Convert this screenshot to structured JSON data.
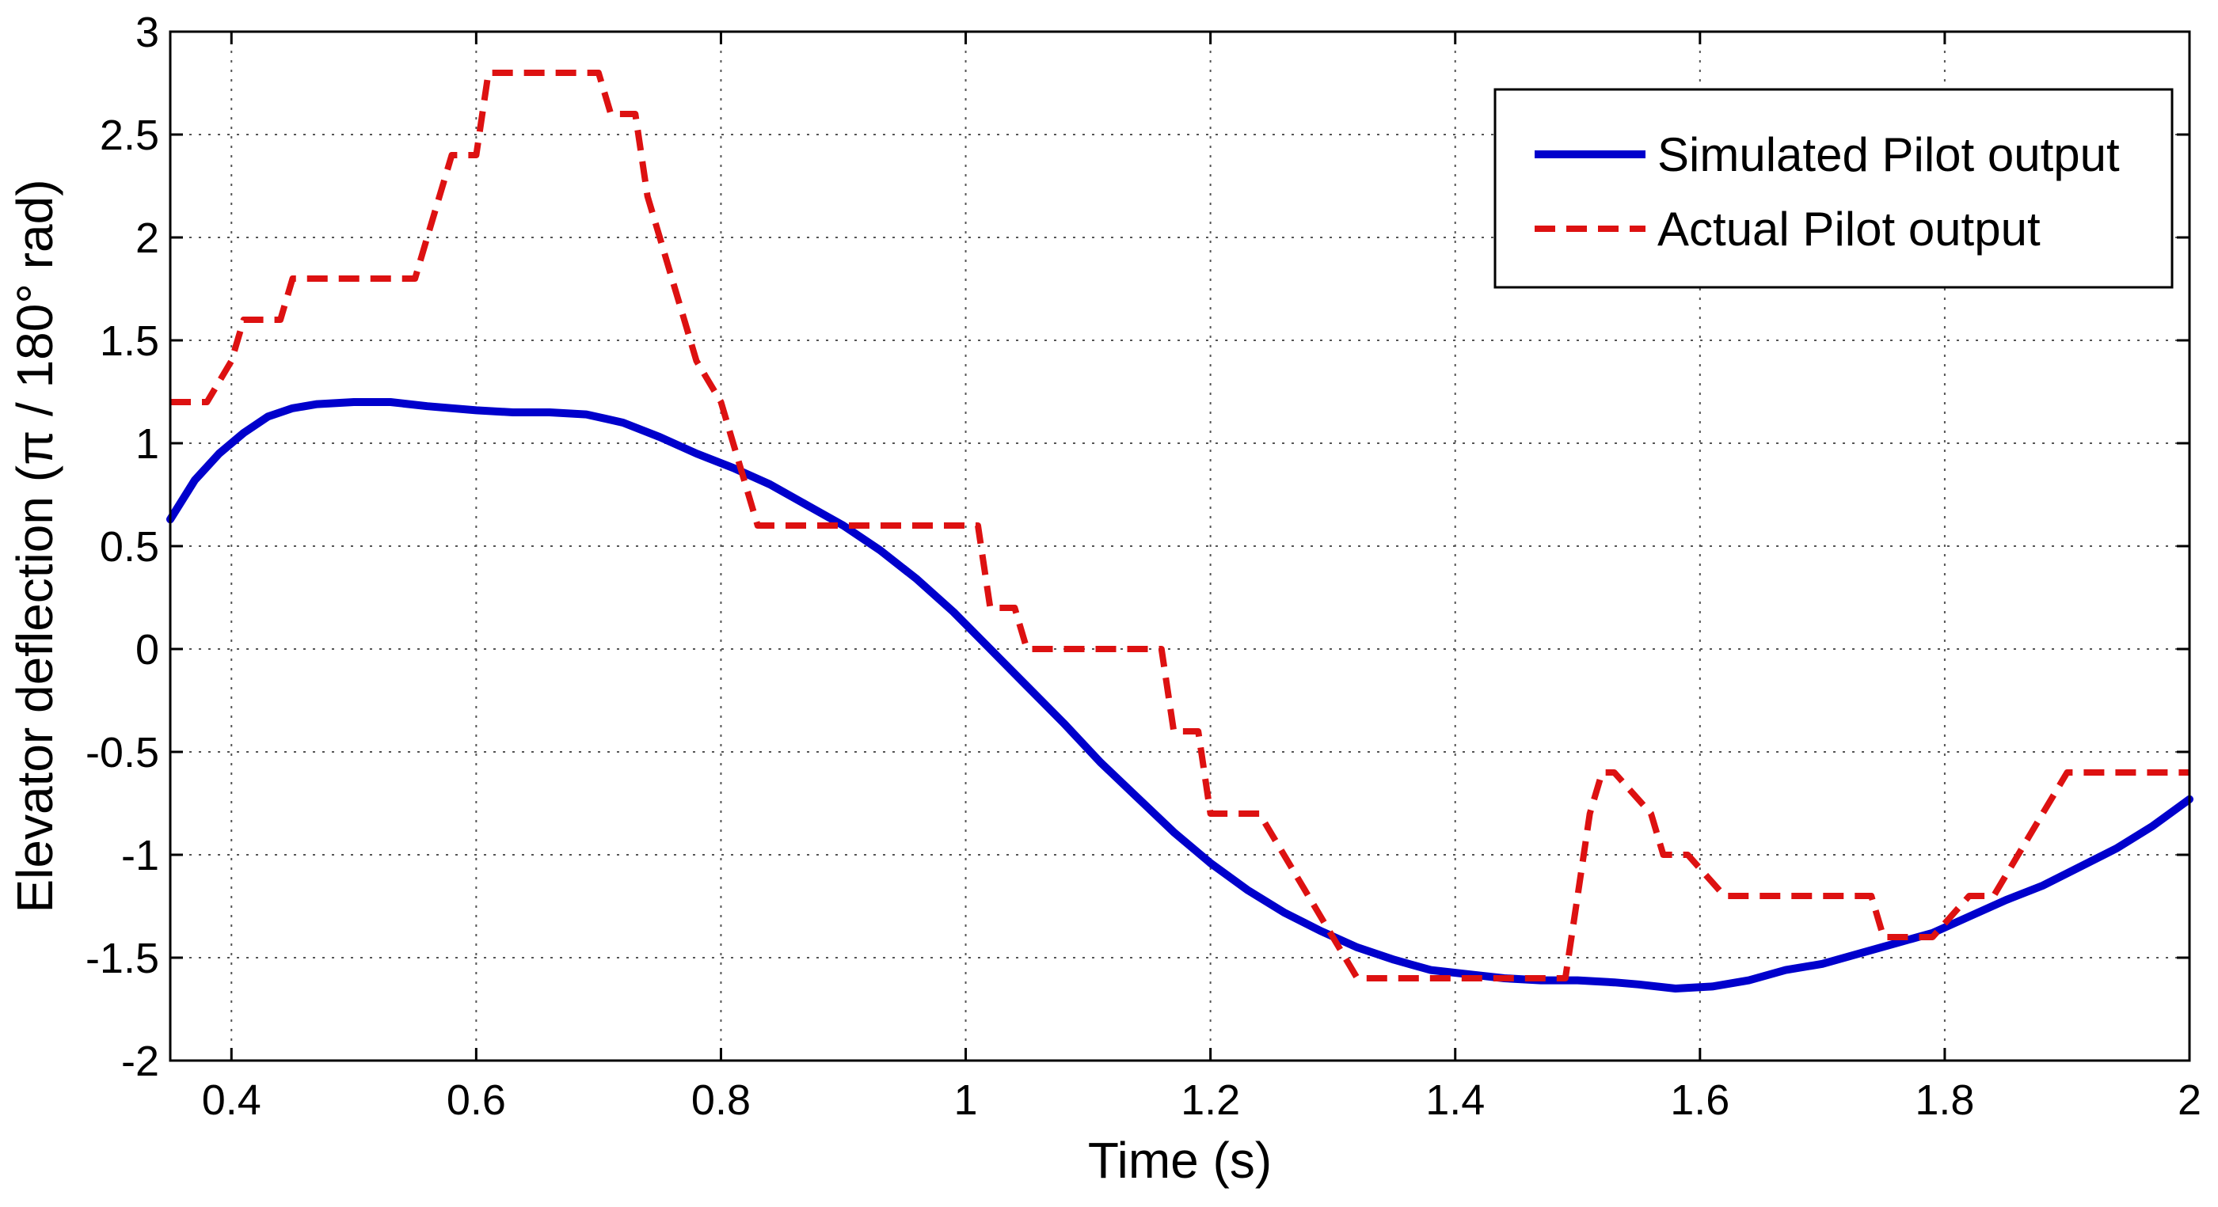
{
  "chart_data": {
    "type": "line",
    "title": "",
    "xlabel": "Time (s)",
    "ylabel": "Elevator deflection (π / 180° rad)",
    "xlim": [
      0.35,
      2.0
    ],
    "ylim": [
      -2,
      3
    ],
    "x_ticks": [
      0.4,
      0.6,
      0.8,
      1,
      1.2,
      1.4,
      1.6,
      1.8,
      2
    ],
    "x_tick_labels": [
      "0.4",
      "0.6",
      "0.8",
      "1",
      "1.2",
      "1.4",
      "1.6",
      "1.8",
      "2"
    ],
    "y_ticks": [
      -2,
      -1.5,
      -1,
      -0.5,
      0,
      0.5,
      1,
      1.5,
      2,
      2.5,
      3
    ],
    "y_tick_labels": [
      "-2",
      "-1.5",
      "-1",
      "-0.5",
      "0",
      "0.5",
      "1",
      "1.5",
      "2",
      "2.5",
      "3"
    ],
    "grid": true,
    "legend_position": "top-right",
    "series": [
      {
        "name": "Simulated Pilot output",
        "color": "#0000CC",
        "style": "solid",
        "x": [
          0.35,
          0.37,
          0.39,
          0.41,
          0.43,
          0.45,
          0.47,
          0.5,
          0.53,
          0.56,
          0.6,
          0.63,
          0.66,
          0.69,
          0.72,
          0.75,
          0.78,
          0.81,
          0.84,
          0.87,
          0.9,
          0.93,
          0.96,
          0.99,
          1.02,
          1.05,
          1.08,
          1.11,
          1.14,
          1.17,
          1.2,
          1.23,
          1.26,
          1.29,
          1.32,
          1.35,
          1.38,
          1.41,
          1.44,
          1.47,
          1.5,
          1.53,
          1.55,
          1.58,
          1.61,
          1.64,
          1.67,
          1.7,
          1.73,
          1.76,
          1.79,
          1.82,
          1.85,
          1.88,
          1.91,
          1.94,
          1.97,
          2.0
        ],
        "y": [
          0.63,
          0.82,
          0.95,
          1.05,
          1.13,
          1.17,
          1.19,
          1.2,
          1.2,
          1.18,
          1.16,
          1.15,
          1.15,
          1.14,
          1.1,
          1.03,
          0.95,
          0.88,
          0.8,
          0.7,
          0.6,
          0.48,
          0.34,
          0.18,
          0.0,
          -0.18,
          -0.36,
          -0.55,
          -0.72,
          -0.89,
          -1.04,
          -1.17,
          -1.28,
          -1.37,
          -1.45,
          -1.51,
          -1.56,
          -1.58,
          -1.6,
          -1.61,
          -1.61,
          -1.62,
          -1.63,
          -1.65,
          -1.64,
          -1.61,
          -1.56,
          -1.53,
          -1.48,
          -1.43,
          -1.38,
          -1.3,
          -1.22,
          -1.15,
          -1.06,
          -0.97,
          -0.86,
          -0.73
        ]
      },
      {
        "name": "Actual Pilot output",
        "color": "#DD1111",
        "style": "dashed",
        "x": [
          0.35,
          0.38,
          0.4,
          0.41,
          0.44,
          0.45,
          0.55,
          0.56,
          0.57,
          0.58,
          0.6,
          0.61,
          0.7,
          0.71,
          0.73,
          0.74,
          0.75,
          0.76,
          0.77,
          0.78,
          0.79,
          0.8,
          0.81,
          0.82,
          0.83,
          1.01,
          1.02,
          1.04,
          1.05,
          1.07,
          1.16,
          1.17,
          1.19,
          1.2,
          1.24,
          1.26,
          1.28,
          1.3,
          1.32,
          1.34,
          1.35,
          1.49,
          1.5,
          1.51,
          1.52,
          1.53,
          1.56,
          1.57,
          1.58,
          1.59,
          1.62,
          1.63,
          1.74,
          1.75,
          1.78,
          1.79,
          1.82,
          1.84,
          1.86,
          1.88,
          1.9,
          1.91,
          2.0
        ],
        "y": [
          1.2,
          1.2,
          1.4,
          1.6,
          1.6,
          1.8,
          1.8,
          2.0,
          2.2,
          2.4,
          2.4,
          2.8,
          2.8,
          2.6,
          2.6,
          2.2,
          2.0,
          1.8,
          1.6,
          1.4,
          1.3,
          1.2,
          1.0,
          0.8,
          0.6,
          0.6,
          0.2,
          0.2,
          0.0,
          0.0,
          0.0,
          -0.4,
          -0.4,
          -0.8,
          -0.8,
          -1.0,
          -1.2,
          -1.4,
          -1.6,
          -1.6,
          -1.6,
          -1.6,
          -1.2,
          -0.8,
          -0.6,
          -0.6,
          -0.8,
          -1.0,
          -1.0,
          -1.0,
          -1.2,
          -1.2,
          -1.2,
          -1.4,
          -1.4,
          -1.4,
          -1.2,
          -1.2,
          -1.0,
          -0.8,
          -0.6,
          -0.6,
          -0.6
        ]
      }
    ]
  }
}
